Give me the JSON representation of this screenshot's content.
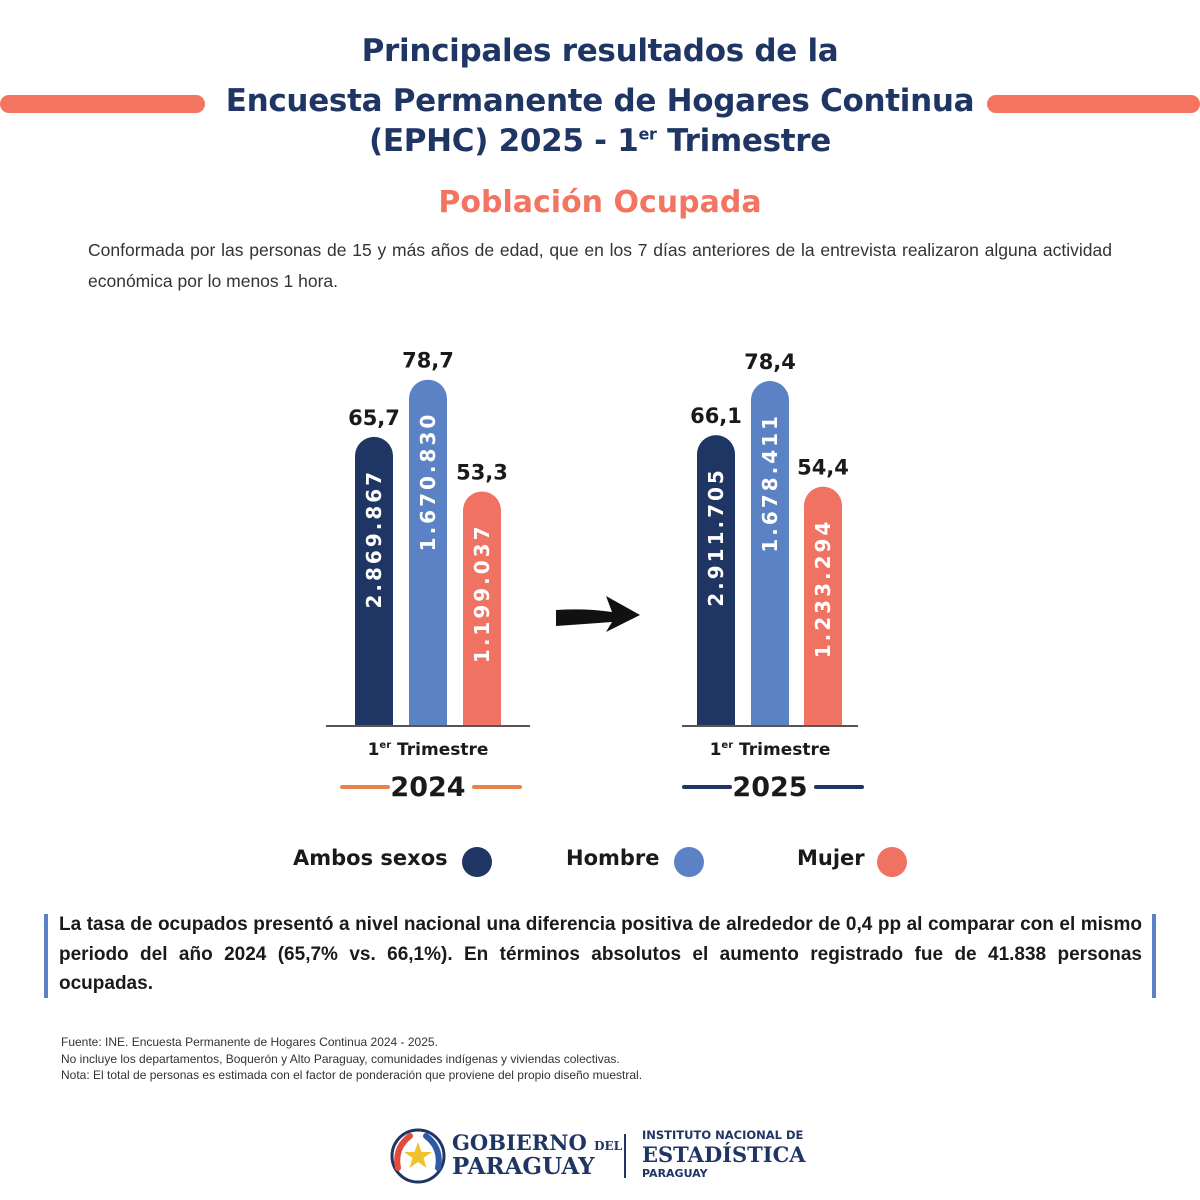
{
  "title": {
    "line1": "Principales resultados de la",
    "line2": "Encuesta Permanente de Hogares Continua",
    "line3_prefix": "(EPHC) 2025 - 1",
    "line3_sup": "er",
    "line3_suffix": " Trimestre"
  },
  "subtitle": "Población Ocupada",
  "intro": "Conformada por las personas de 15 y más años de edad, que en los 7 días anteriores de la entrevista realizaron alguna actividad económica por lo menos 1 hora.",
  "chart_data": [
    {
      "type": "bar",
      "year": "2024",
      "period_prefix": "1",
      "period_sup": "er",
      "period_suffix": " Trimestre",
      "categories": [
        "Ambos sexos",
        "Hombre",
        "Mujer"
      ],
      "values": [
        65.7,
        78.7,
        53.3
      ],
      "value_labels": [
        "65,7",
        "78,7",
        "53,3"
      ],
      "counts": [
        "2.869.867",
        "1.670.830",
        "1.199.037"
      ],
      "year_line_color": "#e8834f"
    },
    {
      "type": "bar",
      "year": "2025",
      "period_prefix": "1",
      "period_sup": "er",
      "period_suffix": " Trimestre",
      "categories": [
        "Ambos sexos",
        "Hombre",
        "Mujer"
      ],
      "values": [
        66.1,
        78.4,
        54.4
      ],
      "value_labels": [
        "66,1",
        "78,4",
        "54,4"
      ],
      "counts": [
        "2.911.705",
        "1.678.411",
        "1.233.294"
      ],
      "year_line_color": "#1f3564"
    }
  ],
  "colors": {
    "ambos": "#1f3564",
    "hombre": "#5b82c4",
    "mujer": "#f07262",
    "title": "#1f3564",
    "accent": "#f47462"
  },
  "legend": [
    {
      "label": "Ambos sexos",
      "color": "#1f3564"
    },
    {
      "label": "Hombre",
      "color": "#5b82c4"
    },
    {
      "label": "Mujer",
      "color": "#f07262"
    }
  ],
  "callout": "La tasa de ocupados presentó a nivel nacional una diferencia positiva de alrededor de 0,4 pp al comparar con el mismo periodo del año 2024 (65,7% vs. 66,1%). En términos absolutos el aumento registrado fue de 41.838 personas ocupadas.",
  "notes": [
    "Fuente: INE. Encuesta Permanente de Hogares Continua 2024 - 2025.",
    "No incluye los departamentos, Boquerón y Alto Paraguay, comunidades indígenas y viviendas colectivas.",
    "Nota: El total de personas es estimada con el factor de ponderación que proviene del propio diseño muestral."
  ],
  "footer": {
    "gob_line1": "GOBIERNO",
    "gob_del": "DEL",
    "gob_line2": "PARAGUAY",
    "ine_line1": "INSTITUTO NACIONAL DE",
    "ine_line2": "ESTADÍSTICA",
    "ine_line3": "PARAGUAY"
  }
}
